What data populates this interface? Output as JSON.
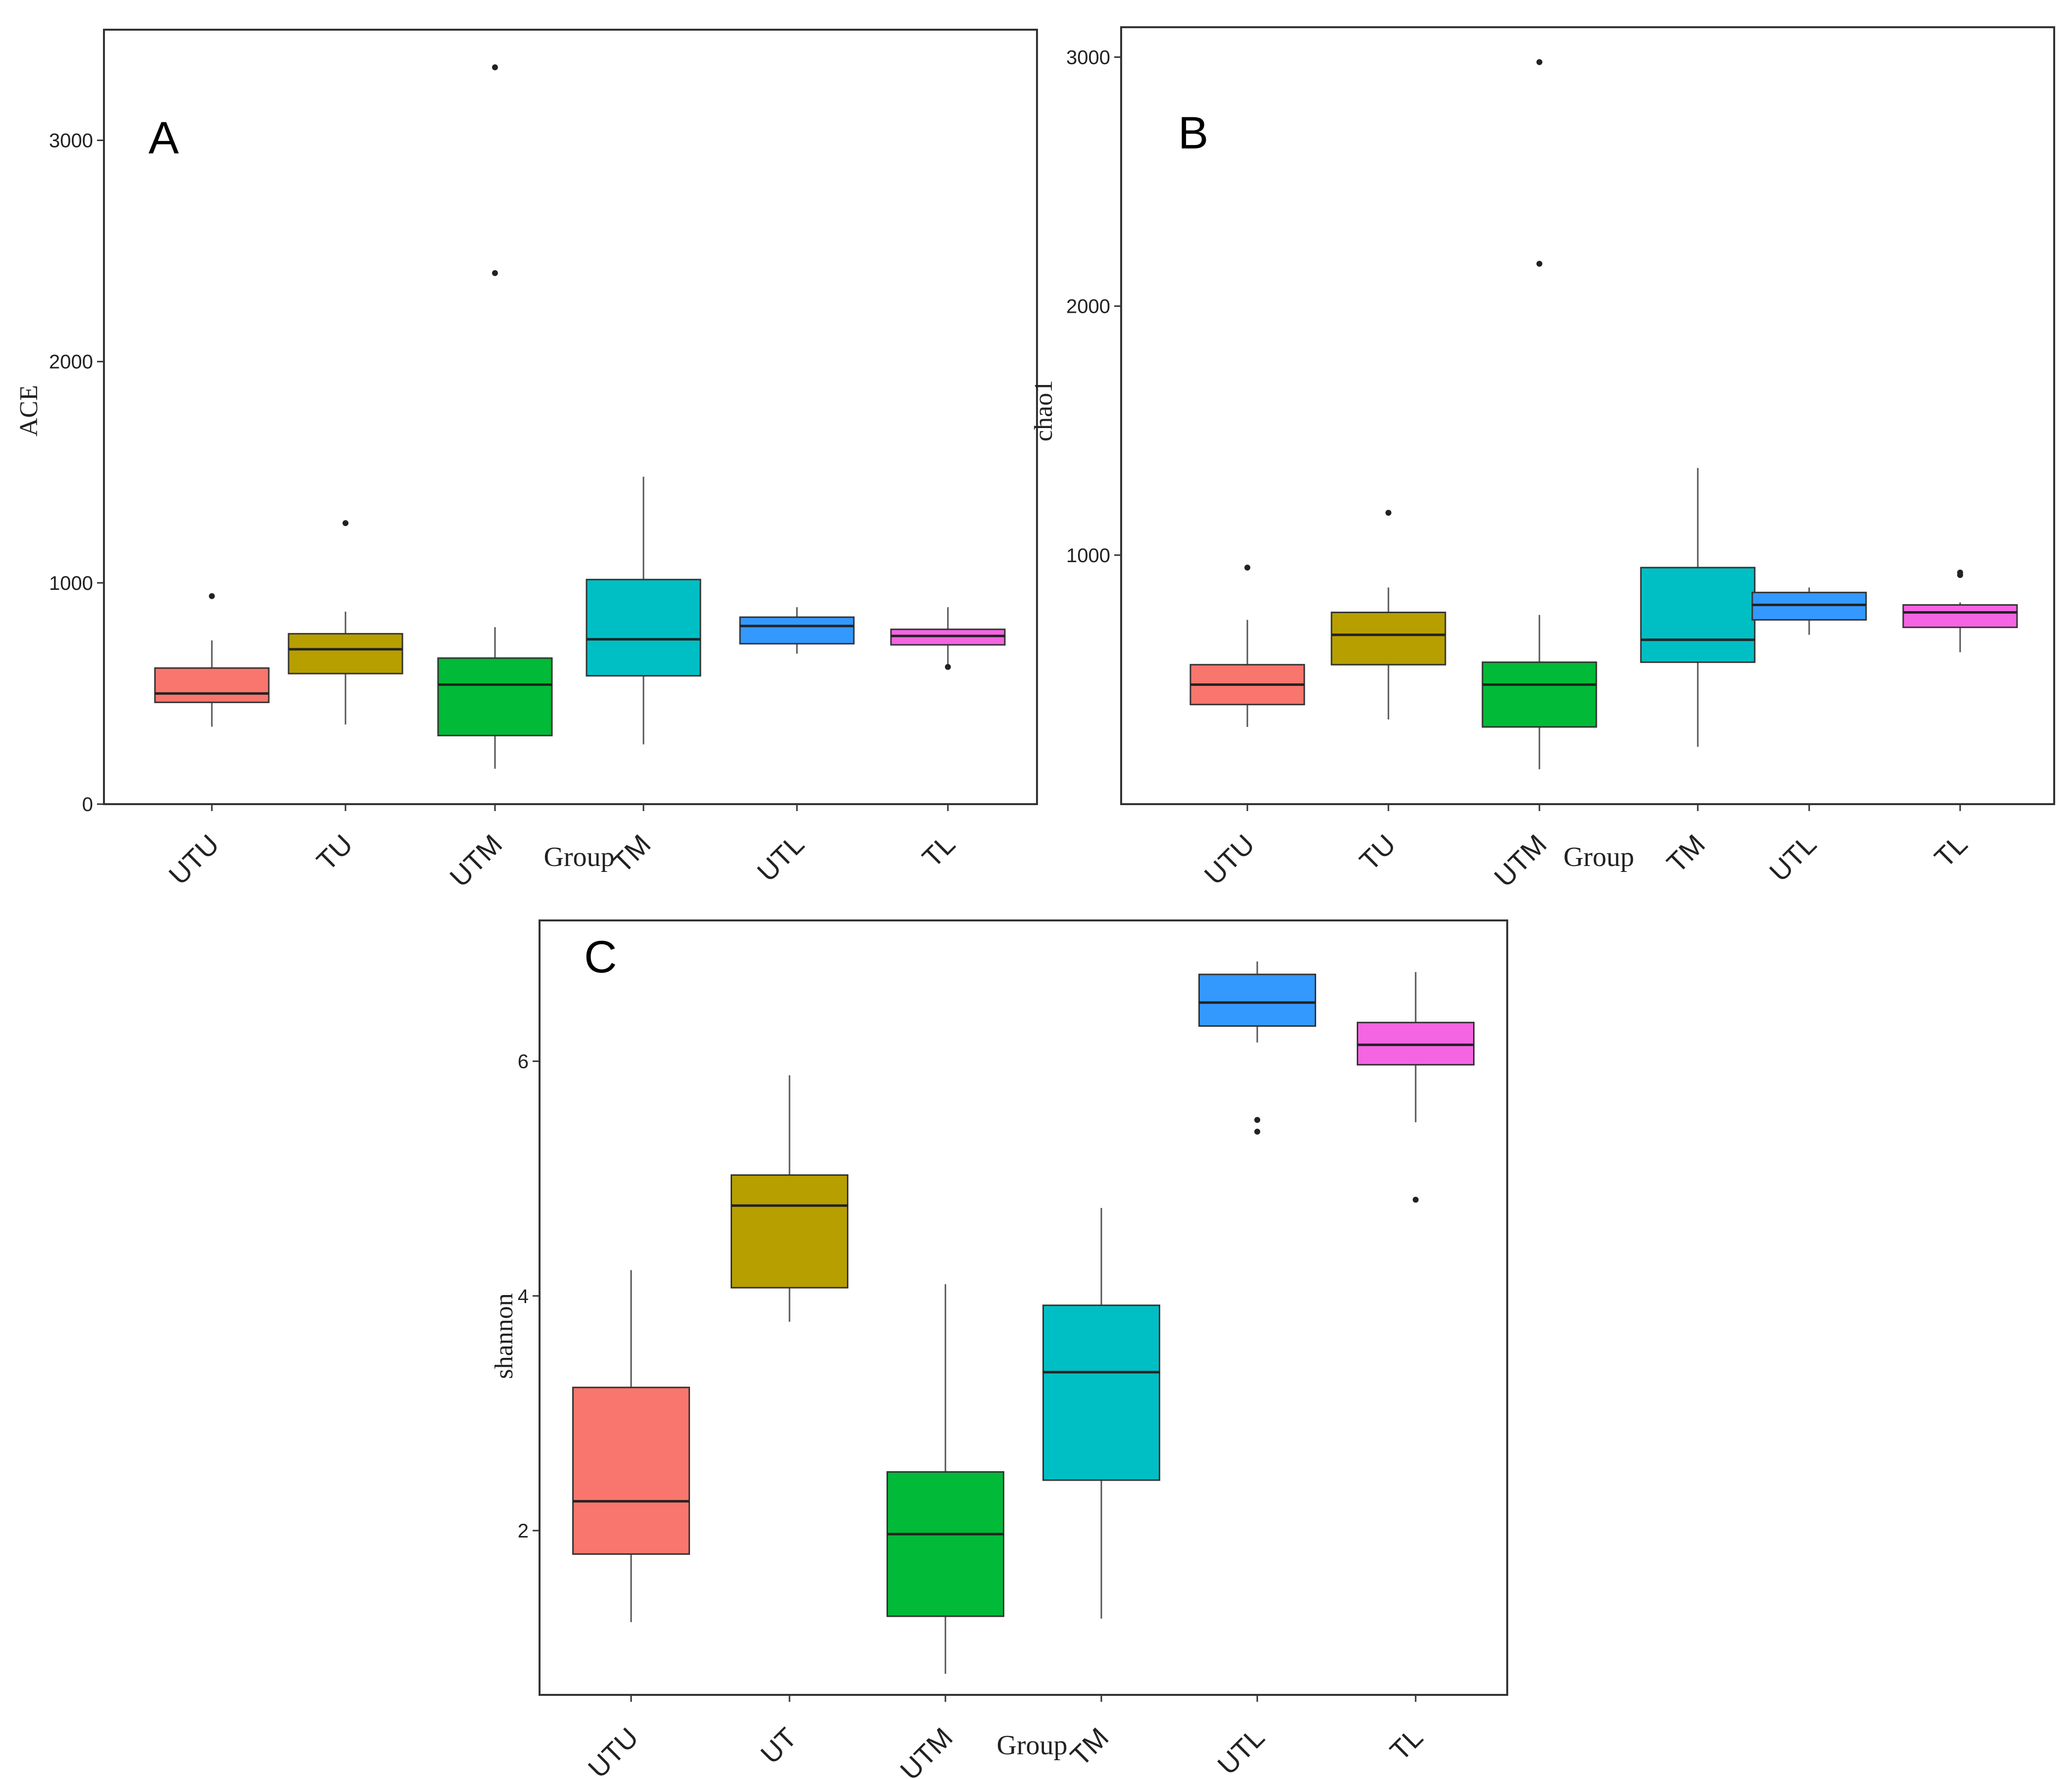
{
  "chart_data": [
    {
      "panel_label": "A",
      "type": "box",
      "xlabel": "Group",
      "ylabel": "ACE",
      "ylim": [
        0,
        3500
      ],
      "yticks": [
        0,
        1000,
        2000,
        3000
      ],
      "categories": [
        "UTU",
        "TU",
        "UTM",
        "TM",
        "UTL",
        "TL"
      ],
      "colors": [
        "#F8766D",
        "#B79F00",
        "#00BA38",
        "#00BFC4",
        "#3399FF",
        "#F564E3"
      ],
      "boxes": [
        {
          "group": "UTU",
          "q1": 460,
          "median": 500,
          "q3": 615,
          "whisker_low": 350,
          "whisker_high": 740,
          "outliers": [
            940
          ]
        },
        {
          "group": "TU",
          "q1": 590,
          "median": 700,
          "q3": 770,
          "whisker_low": 360,
          "whisker_high": 870,
          "outliers": [
            1270
          ]
        },
        {
          "group": "UTM",
          "q1": 310,
          "median": 540,
          "q3": 660,
          "whisker_low": 160,
          "whisker_high": 800,
          "outliers": [
            3330,
            2400
          ]
        },
        {
          "group": "TM",
          "q1": 580,
          "median": 745,
          "q3": 1015,
          "whisker_low": 270,
          "whisker_high": 1480,
          "outliers": []
        },
        {
          "group": "UTL",
          "q1": 725,
          "median": 805,
          "q3": 845,
          "whisker_low": 680,
          "whisker_high": 890,
          "outliers": []
        },
        {
          "group": "TL",
          "q1": 720,
          "median": 760,
          "q3": 790,
          "whisker_low": 620,
          "whisker_high": 890,
          "outliers": [
            620
          ]
        }
      ]
    },
    {
      "panel_label": "B",
      "type": "box",
      "xlabel": "Group",
      "ylabel": "chao1",
      "ylim": [
        0,
        3120
      ],
      "yticks": [
        1000,
        2000,
        3000
      ],
      "categories": [
        "UTU",
        "TU",
        "UTM",
        "TM",
        "UTL",
        "TL"
      ],
      "colors": [
        "#F8766D",
        "#B79F00",
        "#00BA38",
        "#00BFC4",
        "#3399FF",
        "#F564E3"
      ],
      "boxes": [
        {
          "group": "UTU",
          "q1": 400,
          "median": 480,
          "q3": 560,
          "whisker_low": 310,
          "whisker_high": 740,
          "outliers": [
            950
          ]
        },
        {
          "group": "TU",
          "q1": 560,
          "median": 680,
          "q3": 770,
          "whisker_low": 340,
          "whisker_high": 870,
          "outliers": [
            1170
          ]
        },
        {
          "group": "UTM",
          "q1": 310,
          "median": 480,
          "q3": 570,
          "whisker_low": 140,
          "whisker_high": 760,
          "outliers": [
            2980,
            2170
          ]
        },
        {
          "group": "TM",
          "q1": 570,
          "median": 660,
          "q3": 950,
          "whisker_low": 230,
          "whisker_high": 1350,
          "outliers": []
        },
        {
          "group": "UTL",
          "q1": 740,
          "median": 800,
          "q3": 850,
          "whisker_low": 680,
          "whisker_high": 870,
          "outliers": []
        },
        {
          "group": "TL",
          "q1": 710,
          "median": 770,
          "q3": 800,
          "whisker_low": 610,
          "whisker_high": 810,
          "outliers": [
            920,
            930
          ]
        }
      ]
    },
    {
      "panel_label": "C",
      "type": "box",
      "xlabel": "Group",
      "ylabel": "shannon",
      "ylim": [
        0.6,
        7.2
      ],
      "yticks": [
        2,
        4,
        6
      ],
      "categories": [
        "UTU",
        "UT",
        "UTM",
        "TM",
        "UTL",
        "TL"
      ],
      "colors": [
        "#F8766D",
        "#B79F00",
        "#00BA38",
        "#00BFC4",
        "#3399FF",
        "#F564E3"
      ],
      "boxes": [
        {
          "group": "UTU",
          "q1": 1.8,
          "median": 2.25,
          "q3": 3.22,
          "whisker_low": 1.22,
          "whisker_high": 4.22,
          "outliers": []
        },
        {
          "group": "UT",
          "q1": 4.07,
          "median": 4.77,
          "q3": 5.03,
          "whisker_low": 3.78,
          "whisker_high": 5.88,
          "outliers": []
        },
        {
          "group": "UTM",
          "q1": 1.27,
          "median": 1.97,
          "q3": 2.5,
          "whisker_low": 0.78,
          "whisker_high": 4.1,
          "outliers": []
        },
        {
          "group": "TM",
          "q1": 2.43,
          "median": 3.35,
          "q3": 3.92,
          "whisker_low": 1.25,
          "whisker_high": 4.75,
          "outliers": []
        },
        {
          "group": "UTL",
          "q1": 6.3,
          "median": 6.5,
          "q3": 6.74,
          "whisker_low": 6.16,
          "whisker_high": 6.85,
          "outliers": [
            5.5,
            5.4
          ]
        },
        {
          "group": "TL",
          "q1": 5.97,
          "median": 6.14,
          "q3": 6.33,
          "whisker_low": 5.48,
          "whisker_high": 6.76,
          "outliers": [
            4.82
          ]
        }
      ]
    }
  ]
}
